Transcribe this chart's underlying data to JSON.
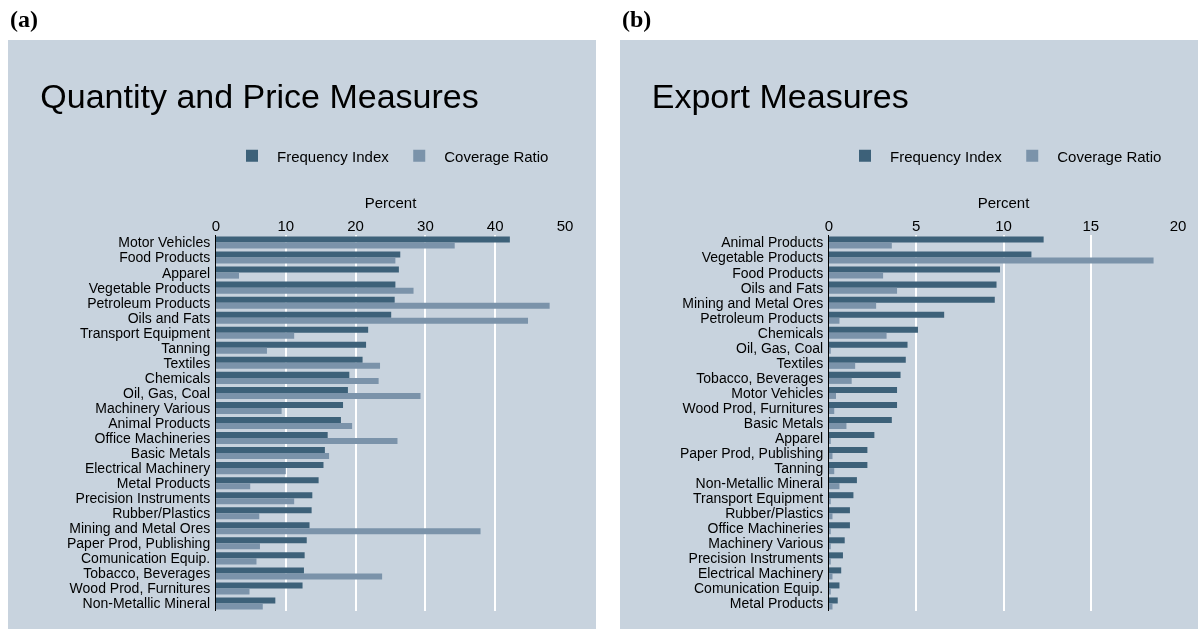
{
  "chart_data": [
    {
      "type": "bar",
      "orientation": "horizontal",
      "title": "Quantity and Price Measures",
      "xlabel": "Percent",
      "annotations": [
        "(a)"
      ],
      "categories": [
        "Motor Vehicles",
        "Food Products",
        "Apparel",
        "Vegetable Products",
        "Petroleum Products",
        "Oils and Fats",
        "Transport Equipment",
        "Tanning",
        "Textiles",
        "Chemicals",
        "Oil, Gas, Coal",
        "Machinery Various",
        "Animal Products",
        "Office Machineries",
        "Basic Metals",
        "Electrical Machinery",
        "Metal Products",
        "Precision Instruments",
        "Rubber/Plastics",
        "Mining and Metal Ores",
        "Paper Prod, Publishing",
        "Comunication Equip.",
        "Tobacco, Beverages",
        "Wood Prod, Furnitures",
        "Non-Metallic Mineral"
      ],
      "series": [
        {
          "name": "Frequency Index",
          "color": "#3d6179",
          "values": [
            42.1,
            26.4,
            26.2,
            25.7,
            25.6,
            25.1,
            21.8,
            21.5,
            21.0,
            19.1,
            18.9,
            18.2,
            17.9,
            16.0,
            15.6,
            15.4,
            14.7,
            13.8,
            13.7,
            13.4,
            13.0,
            12.7,
            12.6,
            12.4,
            8.5
          ]
        },
        {
          "name": "Coverage Ratio",
          "color": "#7b93aa",
          "values": [
            34.2,
            25.7,
            3.3,
            28.3,
            47.8,
            44.7,
            11.2,
            7.3,
            23.5,
            23.3,
            29.3,
            9.4,
            19.5,
            26.0,
            16.2,
            10.0,
            4.9,
            11.2,
            6.2,
            37.9,
            6.3,
            5.8,
            23.8,
            4.8,
            6.7
          ]
        }
      ],
      "xlim": [
        0,
        50
      ],
      "xticks": [
        0,
        10,
        20,
        30,
        40,
        50
      ],
      "grid": "x",
      "legend": "top"
    },
    {
      "type": "bar",
      "orientation": "horizontal",
      "title": "Export Measures",
      "xlabel": "Percent",
      "annotations": [
        "(b)"
      ],
      "categories": [
        "Animal Products",
        "Vegetable Products",
        "Food Products",
        "Oils and Fats",
        "Mining and Metal Ores",
        "Petroleum Products",
        "Chemicals",
        "Oil, Gas, Coal",
        "Textiles",
        "Tobacco, Beverages",
        "Motor Vehicles",
        "Wood Prod, Furnitures",
        "Basic Metals",
        "Apparel",
        "Paper Prod, Publishing",
        "Tanning",
        "Non-Metallic Mineral",
        "Transport Equipment",
        "Rubber/Plastics",
        "Office Machineries",
        "Machinery Various",
        "Precision Instruments",
        "Electrical Machinery",
        "Comunication Equip.",
        "Metal Products"
      ],
      "series": [
        {
          "name": "Frequency Index",
          "color": "#3d6179",
          "values": [
            12.3,
            11.6,
            9.8,
            9.6,
            9.5,
            6.6,
            5.1,
            4.5,
            4.4,
            4.1,
            3.9,
            3.9,
            3.6,
            2.6,
            2.2,
            2.2,
            1.6,
            1.4,
            1.2,
            1.2,
            0.9,
            0.8,
            0.7,
            0.6,
            0.5
          ]
        },
        {
          "name": "Coverage Ratio",
          "color": "#7b93aa",
          "values": [
            3.6,
            18.6,
            3.1,
            3.9,
            2.7,
            0.6,
            3.3,
            0.1,
            1.5,
            1.3,
            0.4,
            0.3,
            1.0,
            0.1,
            0.2,
            0.3,
            0.6,
            0.1,
            0.2,
            0.1,
            0.1,
            0.1,
            0.2,
            0.1,
            0.2
          ]
        }
      ],
      "xlim": [
        0,
        20
      ],
      "xticks": [
        0,
        5,
        10,
        15,
        20
      ],
      "grid": "x",
      "legend": "top"
    }
  ]
}
